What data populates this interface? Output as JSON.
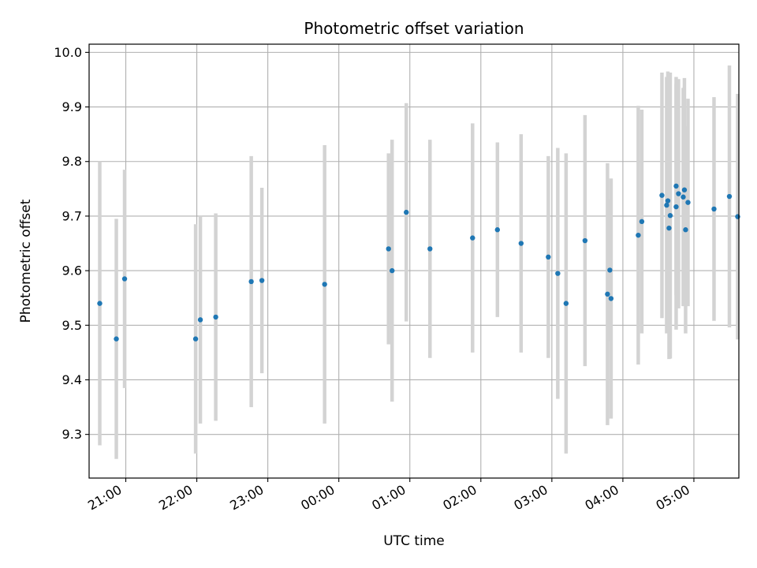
{
  "chart_data": {
    "type": "scatter",
    "title": "Photometric offset variation",
    "xlabel": "UTC time",
    "ylabel": "Photometric offset",
    "x_axis": "time-of-night (UTC), date not shown",
    "xlim": [
      "20:29",
      "05:38"
    ],
    "ylim": [
      9.22,
      10.015
    ],
    "x_ticks": [
      "21:00",
      "22:00",
      "23:00",
      "00:00",
      "01:00",
      "02:00",
      "03:00",
      "04:00",
      "05:00"
    ],
    "y_ticks": [
      9.3,
      9.4,
      9.5,
      9.6,
      9.7,
      9.8,
      9.9,
      10.0
    ],
    "y_tick_labels": [
      "9.3",
      "9.4",
      "9.5",
      "9.6",
      "9.7",
      "9.8",
      "9.9",
      "10.0"
    ],
    "grid": true,
    "colors": {
      "point": "#1f77b4",
      "errorbar": "#d3d3d3",
      "grid": "#b0b0b0"
    },
    "series": [
      {
        "x": [
          "20:38",
          "20:52",
          "20:59",
          "21:59",
          "22:03",
          "22:16",
          "22:46",
          "22:55",
          "23:48",
          "00:42",
          "00:45",
          "00:57",
          "01:17",
          "01:53",
          "02:14",
          "02:34",
          "02:57",
          "03:05",
          "03:12",
          "03:28",
          "03:47",
          "03:49",
          "03:50",
          "04:13",
          "04:16",
          "04:33",
          "04:37",
          "04:38",
          "04:39",
          "04:40",
          "04:45",
          "04:45",
          "04:47",
          "04:51",
          "04:52",
          "04:53",
          "04:55",
          "05:17",
          "05:30",
          "05:37"
        ],
        "y": [
          9.54,
          9.475,
          9.585,
          9.475,
          9.51,
          9.515,
          9.58,
          9.582,
          9.575,
          9.64,
          9.6,
          9.707,
          9.64,
          9.66,
          9.675,
          9.65,
          9.625,
          9.595,
          9.54,
          9.655,
          9.557,
          9.601,
          9.549,
          9.665,
          9.69,
          9.738,
          9.72,
          9.728,
          9.678,
          9.701,
          9.717,
          9.755,
          9.741,
          9.735,
          9.748,
          9.675,
          9.725,
          9.713,
          9.736,
          9.699
        ],
        "yerr": [
          0.26,
          0.22,
          0.2,
          0.21,
          0.19,
          0.19,
          0.23,
          0.17,
          0.255,
          0.175,
          0.24,
          0.2,
          0.2,
          0.21,
          0.16,
          0.2,
          0.185,
          0.23,
          0.275,
          0.23,
          0.24,
          0.13,
          0.22,
          0.237,
          0.205,
          0.225,
          0.235,
          0.237,
          0.24,
          0.262,
          0.225,
          0.2,
          0.21,
          0.2,
          0.205,
          0.19,
          0.19,
          0.205,
          0.24,
          0.225
        ]
      }
    ]
  }
}
